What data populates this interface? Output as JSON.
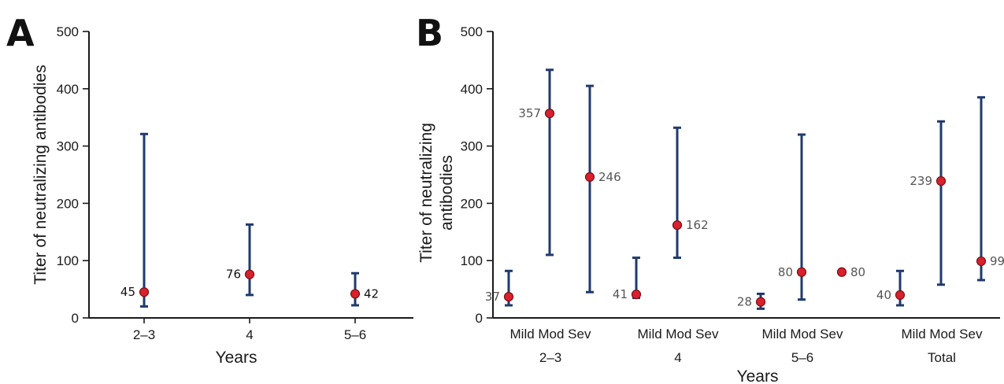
{
  "colors": {
    "bar": "#1f3a6e",
    "point": "#d9202c",
    "point_edge": "#7a1016",
    "label_a": "#111111",
    "label_b": "#555555"
  },
  "chart_data": [
    {
      "type": "scatter",
      "panel": "A",
      "ylabel": "Titer of neutralizing antibodies",
      "xlabel": "Years",
      "ylim": [
        0,
        500
      ],
      "yticks": [
        0,
        100,
        200,
        300,
        400,
        500
      ],
      "categories": [
        "2–3",
        "4",
        "5–6"
      ],
      "points": [
        {
          "category": "2–3",
          "value": 45,
          "label": "45",
          "low": 20,
          "high": 321,
          "label_side": "left"
        },
        {
          "category": "4",
          "value": 76,
          "label": "76",
          "low": 40,
          "high": 163,
          "label_side": "left"
        },
        {
          "category": "5–6",
          "value": 42,
          "label": "42",
          "low": 22,
          "high": 78,
          "label_side": "right"
        }
      ]
    },
    {
      "type": "scatter",
      "panel": "B",
      "ylabel": [
        "Titer of neutralizing",
        "antibodies"
      ],
      "xlabel": "Years",
      "ylim": [
        0,
        500
      ],
      "yticks": [
        0,
        100,
        200,
        300,
        400,
        500
      ],
      "groups": [
        {
          "name": "2–3",
          "sublabels": "Mild Mod Sev"
        },
        {
          "name": "4",
          "sublabels": "Mild Mod Sev"
        },
        {
          "name": "5–6",
          "sublabels": "Mild Mod Sev"
        },
        {
          "name": "Total",
          "sublabels": "Mild Mod Sev"
        }
      ],
      "points": [
        {
          "group": 0,
          "slot": 0,
          "value": 37,
          "label": "37",
          "low": 22,
          "high": 82,
          "label_side": "left"
        },
        {
          "group": 0,
          "slot": 1,
          "value": 357,
          "label": "357",
          "low": 110,
          "high": 433,
          "label_side": "left"
        },
        {
          "group": 0,
          "slot": 2,
          "value": 246,
          "label": "246",
          "low": 45,
          "high": 405,
          "label_side": "right"
        },
        {
          "group": 1,
          "slot": 0,
          "value": 41,
          "label": "41",
          "low": 35,
          "high": 105,
          "label_side": "left"
        },
        {
          "group": 1,
          "slot": 1,
          "value": 162,
          "label": "162",
          "low": 105,
          "high": 332,
          "label_side": "right"
        },
        {
          "group": 2,
          "slot": 0,
          "value": 28,
          "label": "28",
          "low": 16,
          "high": 42,
          "label_side": "left"
        },
        {
          "group": 2,
          "slot": 1,
          "value": 80,
          "label": "80",
          "low": 32,
          "high": 320,
          "label_side": "left"
        },
        {
          "group": 2,
          "slot": 2,
          "value": 80,
          "label": "80",
          "low": null,
          "high": null,
          "label_side": "right"
        },
        {
          "group": 3,
          "slot": 0,
          "value": 40,
          "label": "40",
          "low": 22,
          "high": 82,
          "label_side": "left"
        },
        {
          "group": 3,
          "slot": 1,
          "value": 239,
          "label": "239",
          "low": 58,
          "high": 343,
          "label_side": "left"
        },
        {
          "group": 3,
          "slot": 2,
          "value": 99,
          "label": "99",
          "low": 66,
          "high": 385,
          "label_side": "right"
        }
      ]
    }
  ]
}
